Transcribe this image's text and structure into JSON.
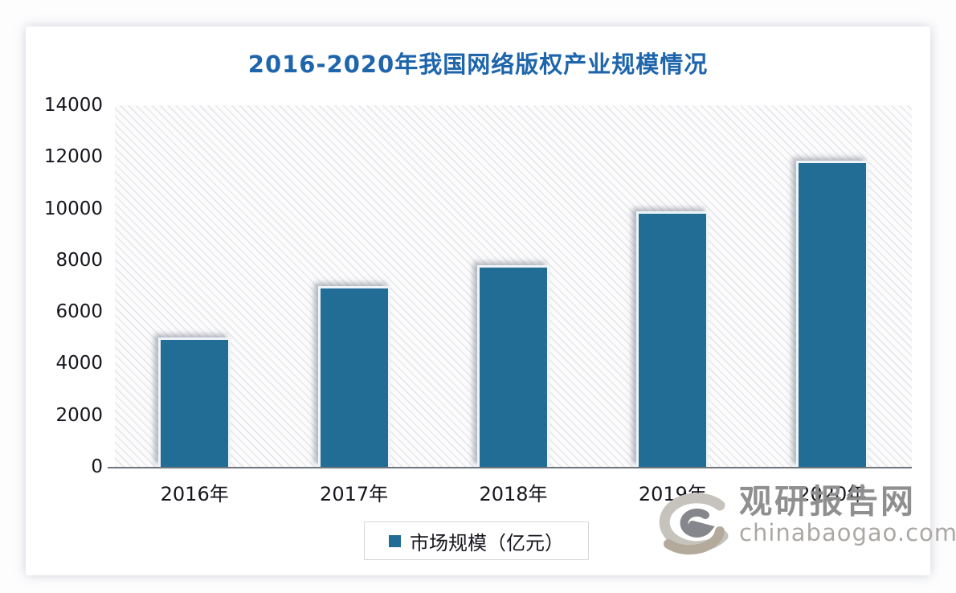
{
  "chart_data": {
    "type": "bar",
    "title": "2016-2020年我国网络版权产业规模情况",
    "categories": [
      "2016年",
      "2017年",
      "2018年",
      "2019年",
      "2020年"
    ],
    "series": [
      {
        "name": "市场规模（亿元）",
        "values": [
          5000,
          7000,
          7800,
          9900,
          11850
        ]
      }
    ],
    "xlabel": "",
    "ylabel": "",
    "ylim": [
      0,
      14000
    ],
    "ytick_step": 2000,
    "yticks": [
      "14000",
      "12000",
      "10000",
      "8000",
      "6000",
      "4000",
      "2000",
      "0"
    ],
    "grid": false,
    "plot_background": "diagonal-hatch",
    "legend_position": "bottom-center",
    "bar_color": "#216d96"
  },
  "legend": {
    "marker": "square",
    "label": "市场规模（亿元）"
  },
  "watermark": {
    "logo_icon": "guanyan-swirl-logo",
    "site_name": "观研报告网",
    "site_url": "chinabaogao.com"
  },
  "colors": {
    "title_blue": "#1e65ab",
    "bar_fill": "#216d96",
    "axis_line": "#70767c",
    "axis_text": "#15151d",
    "watermark_gray": "#8f8f90",
    "watermark_light_gray": "#aba8a4"
  }
}
